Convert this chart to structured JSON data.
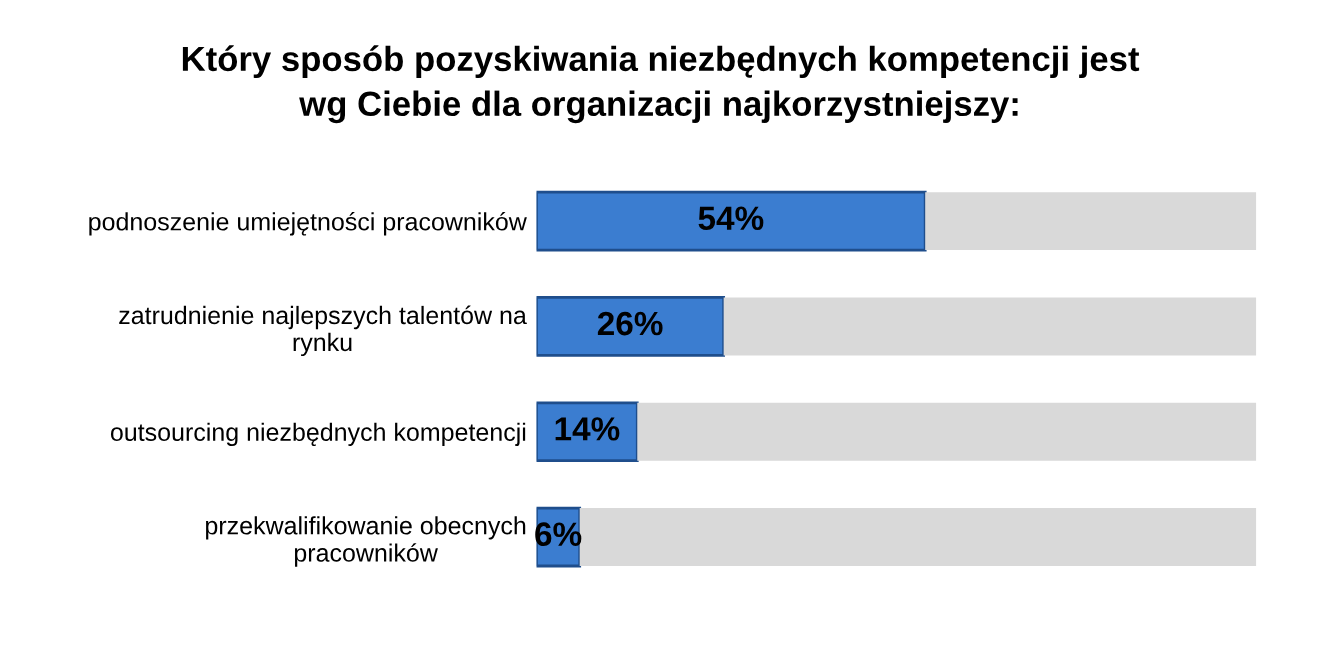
{
  "chart_data": {
    "type": "bar",
    "orientation": "horizontal",
    "stacked": true,
    "title": "Który sposób pozyskiwania niezbędnych kompetencji jest\nwg Ciebie dla organizacji najkorzystniejszy:",
    "categories": [
      "podnoszenie umiejętności pracowników",
      "zatrudnienie najlepszych talentów na\nrynku",
      "outsourcing niezbędnych kompetencji",
      "przekwalifikowanie obecnych\npracowników"
    ],
    "series": [
      {
        "color": "#3b7dd0",
        "values": [
          54,
          26,
          14,
          6
        ],
        "value_labels": [
          "54%",
          "26%",
          "14%",
          "6%"
        ]
      },
      {
        "color": "#d9d9d9",
        "values": [
          46,
          74,
          86,
          94
        ]
      }
    ],
    "xlim": [
      0,
      100
    ],
    "tick_labels": "y"
  }
}
